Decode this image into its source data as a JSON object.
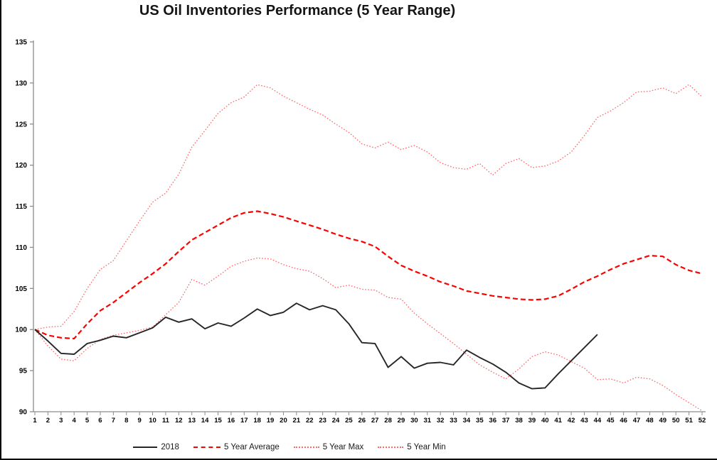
{
  "title": "US Oil Inventories Performance (5 Year Range)",
  "colors": {
    "series_2018": "#262626",
    "five_year_average": "#ff0000",
    "five_year_max_min": "#ff6666",
    "axis": "#8c8c8c",
    "tick_text": "#000000"
  },
  "chart_data": {
    "type": "line",
    "title": "US Oil Inventories Performance (5 Year Range)",
    "xlabel": "",
    "ylabel": "",
    "ylim": [
      90,
      135
    ],
    "ytick_step": 5,
    "yticks": [
      90,
      95,
      100,
      105,
      110,
      115,
      120,
      125,
      130,
      135
    ],
    "grid": false,
    "legend_position": "bottom",
    "x": [
      1,
      2,
      3,
      4,
      5,
      6,
      7,
      8,
      9,
      10,
      11,
      12,
      13,
      14,
      15,
      16,
      17,
      18,
      19,
      20,
      21,
      22,
      23,
      24,
      25,
      26,
      27,
      28,
      29,
      30,
      31,
      32,
      33,
      34,
      35,
      36,
      37,
      38,
      39,
      40,
      41,
      42,
      43,
      44,
      45,
      46,
      47,
      48,
      49,
      50,
      51,
      52
    ],
    "series": [
      {
        "name": "2018",
        "style": "solid",
        "color": "#262626",
        "values": [
          100,
          98.6,
          97.1,
          97.0,
          98.3,
          98.7,
          99.2,
          99.0,
          99.6,
          100.2,
          101.5,
          100.9,
          101.3,
          100.1,
          100.8,
          100.4,
          101.4,
          102.5,
          101.7,
          102.1,
          103.2,
          102.4,
          102.9,
          102.4,
          100.7,
          98.4,
          98.3,
          95.4,
          96.7,
          95.3,
          95.9,
          96.0,
          95.7,
          97.5,
          96.6,
          95.8,
          94.8,
          93.5,
          92.8,
          92.9,
          94.6,
          96.2,
          97.8,
          99.4
        ]
      },
      {
        "name": "5 Year Average",
        "style": "dashed",
        "color": "#ff0000",
        "values": [
          100,
          99.3,
          99.0,
          98.9,
          100.7,
          102.3,
          103.3,
          104.5,
          105.7,
          106.8,
          108.0,
          109.5,
          110.9,
          111.8,
          112.7,
          113.6,
          114.2,
          114.4,
          114.1,
          113.7,
          113.2,
          112.7,
          112.2,
          111.6,
          111.1,
          110.7,
          110.1,
          108.9,
          107.8,
          107.1,
          106.5,
          105.8,
          105.3,
          104.7,
          104.4,
          104.1,
          103.9,
          103.7,
          103.6,
          103.7,
          104.1,
          104.9,
          105.8,
          106.5,
          107.3,
          108.0,
          108.5,
          109.0,
          108.9,
          107.9,
          107.2,
          106.8
        ]
      },
      {
        "name": "5 Year Max",
        "style": "dotted",
        "color": "#ff6666",
        "values": [
          100,
          100.3,
          100.4,
          102.2,
          105.0,
          107.3,
          108.4,
          110.8,
          113.2,
          115.5,
          116.6,
          118.9,
          122.2,
          124.2,
          126.3,
          127.6,
          128.3,
          129.8,
          129.4,
          128.4,
          127.6,
          126.8,
          126.1,
          125.0,
          124.0,
          122.6,
          122.1,
          122.8,
          121.9,
          122.4,
          121.6,
          120.3,
          119.7,
          119.5,
          120.2,
          118.8,
          120.2,
          120.8,
          119.7,
          119.9,
          120.5,
          121.6,
          123.6,
          125.8,
          126.6,
          127.6,
          128.9,
          129.0,
          129.4,
          128.7,
          129.8,
          128.3
        ]
      },
      {
        "name": "5 Year Min",
        "style": "dotted",
        "color": "#ff6666",
        "values": [
          100,
          98.0,
          96.4,
          96.2,
          97.7,
          98.8,
          99.3,
          99.6,
          99.9,
          100.3,
          101.8,
          103.3,
          106.1,
          105.4,
          106.5,
          107.7,
          108.3,
          108.7,
          108.6,
          107.9,
          107.4,
          107.1,
          106.2,
          105.1,
          105.4,
          104.9,
          104.8,
          103.9,
          103.7,
          102.0,
          100.7,
          99.5,
          98.3,
          97.0,
          95.7,
          94.8,
          94.0,
          95.2,
          96.7,
          97.3,
          96.9,
          96.1,
          95.3,
          93.9,
          94.0,
          93.5,
          94.2,
          94.0,
          93.2,
          92.1,
          91.1,
          90.1
        ]
      }
    ]
  }
}
